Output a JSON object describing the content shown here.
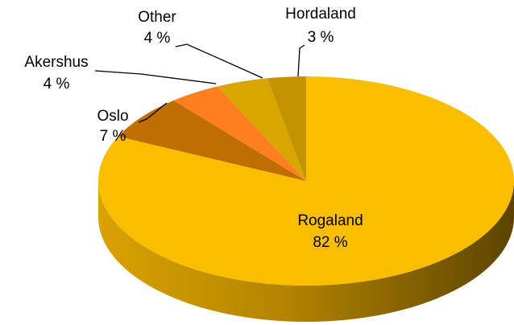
{
  "chart_data": {
    "type": "pie",
    "categories": [
      "Rogaland",
      "Oslo",
      "Akershus",
      "Other",
      "Hordaland"
    ],
    "values": [
      82,
      7,
      4,
      4,
      3
    ],
    "value_labels": [
      "82 %",
      "7 %",
      "4 %",
      "4 %",
      "3 %"
    ],
    "colors": [
      "#F9BE00",
      "#BF6F00",
      "#FF7F1F",
      "#D9A600",
      "#C39300"
    ]
  }
}
